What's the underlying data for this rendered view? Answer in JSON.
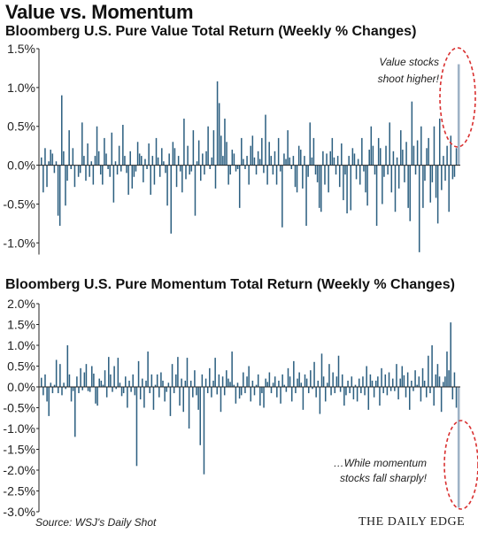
{
  "page": {
    "title": "Value vs. Momentum",
    "source": "Source: WSJ's Daily Shot",
    "brand": "THE DAILY EDGE"
  },
  "colors": {
    "bar": "#2c5f80",
    "highlight": "#9fb3c6",
    "oval": "#d93030",
    "axis": "#222222"
  },
  "chart_data": [
    {
      "type": "bar",
      "title": "Bloomberg U.S. Pure Value Total Return (Weekly % Changes)",
      "ylim": [
        -1.15,
        1.5
      ],
      "yticks": [
        1.5,
        1.0,
        0.5,
        0.0,
        -0.5,
        -1.0
      ],
      "ytick_labels": [
        "1.5%",
        "1.0%",
        "0.5%",
        "0.0%",
        "-0.5%",
        "-1.0%"
      ],
      "annotation": [
        "Value stocks",
        "shoot higher!"
      ],
      "values": [
        0.1,
        -0.35,
        0.22,
        -0.28,
        0.05,
        0.2,
        0.15,
        -0.1,
        0.05,
        -0.65,
        -0.78,
        0.9,
        0.18,
        -0.52,
        -0.2,
        0.45,
        -0.05,
        0.22,
        -0.28,
        0.0,
        -0.15,
        -0.1,
        0.55,
        0.12,
        -0.2,
        0.28,
        -0.15,
        0.05,
        -0.25,
        0.12,
        0.5,
        0.18,
        -0.12,
        -0.25,
        0.35,
        0.15,
        -0.05,
        -0.15,
        0.42,
        -0.48,
        0.05,
        -0.12,
        0.25,
        -0.08,
        0.52,
        0.12,
        -0.1,
        -0.38,
        0.18,
        -0.3,
        -0.15,
        -0.08,
        0.3,
        0.15,
        0.12,
        -0.22,
        0.08,
        -0.05,
        0.28,
        -0.38,
        0.12,
        -0.25,
        0.35,
        0.1,
        -0.15,
        0.22,
        0.05,
        -0.1,
        -0.52,
        0.15,
        -0.88,
        0.3,
        0.22,
        -0.28,
        0.12,
        -0.08,
        -0.35,
        0.6,
        -0.18,
        0.25,
        -0.12,
        -0.08,
        0.45,
        -0.65,
        0.05,
        0.32,
        -0.2,
        0.15,
        -0.12,
        0.18,
        0.5,
        -0.05,
        0.1,
        0.45,
        -0.3,
        1.08,
        0.8,
        0.38,
        0.12,
        0.6,
        0.3,
        -0.25,
        -0.12,
        0.2,
        0.15,
        -0.08,
        -0.05,
        -0.55,
        0.35,
        0.08,
        -0.05,
        0.12,
        -0.25,
        0.25,
        0.38,
        0.1,
        -0.12,
        0.18,
        0.08,
        0.35,
        -0.1,
        0.65,
        -0.25,
        0.3,
        0.12,
        -0.12,
        0.18,
        -0.25,
        0.35,
        -0.08,
        -0.8,
        0.15,
        0.08,
        0.45,
        0.1,
        -0.05,
        0.12,
        -0.28,
        -0.35,
        0.25,
        0.2,
        -0.3,
        0.12,
        -0.78,
        -0.15,
        0.55,
        0.1,
        0.35,
        -0.12,
        -0.22,
        -0.55,
        -0.6,
        0.18,
        -0.25,
        0.15,
        -0.35,
        0.18,
        0.35,
        0.1,
        -0.12,
        0.12,
        -0.28,
        0.28,
        -0.45,
        -0.12,
        -0.62,
        0.12,
        -0.58,
        0.22,
        0.15,
        -0.18,
        0.08,
        -0.25,
        0.35,
        -0.08,
        -0.35,
        -0.52,
        0.2,
        0.5,
        0.25,
        -0.12,
        -0.78,
        0.35,
        0.22,
        -0.5,
        -0.15,
        0.25,
        -0.12,
        0.55,
        -0.35,
        0.18,
        -0.6,
        0.1,
        -0.3,
        0.45,
        0.2,
        -0.22,
        0.3,
        -0.55,
        -0.72,
        0.82,
        0.25,
        -0.12,
        0.32,
        -1.12,
        0.5,
        -0.55,
        -0.2,
        0.22,
        0.35,
        -0.48,
        -0.22,
        0.5,
        -0.42,
        -0.75,
        0.6,
        -0.32,
        0.12,
        -0.2,
        0.25,
        -0.6,
        0.38,
        -0.18,
        -0.15,
        0.22,
        1.3
      ]
    },
    {
      "type": "bar",
      "title": "Bloomberg U.S. Pure Momentum Total Return (Weekly % Changes)",
      "ylim": [
        -3.0,
        2.0
      ],
      "yticks": [
        2.0,
        1.5,
        1.0,
        0.5,
        0.0,
        -0.5,
        -1.0,
        -1.5,
        -2.0,
        -2.5,
        -3.0
      ],
      "ytick_labels": [
        "2.0%",
        "1.5%",
        "1.0%",
        "0.5%",
        "0.0%",
        "-0.5%",
        "-1.0%",
        "-1.5%",
        "-2.0%",
        "-2.5%",
        "-3.0%"
      ],
      "annotation": [
        "…While momentum",
        "stocks fall sharply!"
      ],
      "values": [
        0.22,
        -0.2,
        0.3,
        -0.35,
        -0.7,
        0.1,
        -0.15,
        0.05,
        0.65,
        -0.15,
        0.55,
        -0.2,
        0.1,
        -0.05,
        1.0,
        0.3,
        -0.35,
        -0.1,
        -1.2,
        0.25,
        -0.15,
        0.45,
        -0.08,
        0.35,
        0.55,
        -0.1,
        -0.12,
        0.5,
        0.32,
        -0.4,
        -0.45,
        0.2,
        0.15,
        0.05,
        0.4,
        -0.25,
        0.72,
        0.3,
        -0.12,
        0.5,
        -0.05,
        0.7,
        0.1,
        -0.22,
        -0.15,
        0.25,
        -0.5,
        0.15,
        -0.12,
        0.3,
        -0.2,
        -1.9,
        0.62,
        -0.3,
        0.2,
        -0.5,
        0.15,
        0.85,
        -0.15,
        0.3,
        -0.55,
        0.05,
        0.3,
        -0.25,
        0.35,
        0.15,
        -0.35,
        -0.12,
        0.1,
        -0.7,
        0.55,
        -0.15,
        0.3,
        0.72,
        -0.45,
        0.2,
        -0.6,
        0.15,
        0.7,
        -1.0,
        0.15,
        -0.25,
        0.4,
        -0.2,
        -0.55,
        -1.4,
        0.3,
        -2.1,
        0.2,
        -0.15,
        0.45,
        -0.25,
        0.15,
        0.7,
        -0.18,
        0.3,
        -0.6,
        0.25,
        -0.2,
        0.4,
        0.2,
        0.12,
        0.85,
        0.05,
        -0.4,
        0.1,
        -0.28,
        -0.2,
        0.35,
        -0.15,
        0.25,
        0.5,
        -0.35,
        0.15,
        -0.2,
        0.05,
        0.3,
        -0.45,
        -0.15,
        -0.5,
        0.2,
        0.12,
        0.35,
        -0.15,
        0.1,
        0.25,
        -0.25,
        0.15,
        -0.4,
        0.3,
        0.05,
        -0.12,
        0.45,
        0.25,
        -0.35,
        0.62,
        -0.15,
        0.2,
        0.35,
        0.1,
        -0.55,
        0.3,
        0.2,
        -0.15,
        0.4,
        -0.05,
        0.6,
        -0.25,
        0.15,
        -0.65,
        0.8,
        0.25,
        -0.35,
        0.1,
        0.55,
        -0.2,
        0.35,
        -0.15,
        0.25,
        0.75,
        -0.12,
        0.3,
        -0.45,
        -0.2,
        0.15,
        -0.15,
        0.25,
        -0.3,
        0.05,
        -0.35,
        0.2,
        -0.15,
        0.25,
        -0.2,
        0.5,
        -0.55,
        0.3,
        0.15,
        -0.25,
        0.15,
        0.25,
        -0.45,
        0.45,
        -0.15,
        0.3,
        -0.2,
        0.35,
        -0.1,
        0.2,
        -0.1,
        0.55,
        -0.3,
        0.2,
        0.5,
        0.28,
        -0.25,
        0.35,
        -0.55,
        0.15,
        -0.1,
        0.4,
        0.05,
        0.25,
        -0.35,
        0.45,
        0.15,
        -0.25,
        0.75,
        -0.15,
        1.0,
        -0.45,
        0.3,
        0.55,
        0.25,
        -0.6,
        0.12,
        0.25,
        0.85,
        0.4,
        1.55,
        -0.3,
        0.35,
        -0.5,
        -2.9
      ]
    }
  ]
}
